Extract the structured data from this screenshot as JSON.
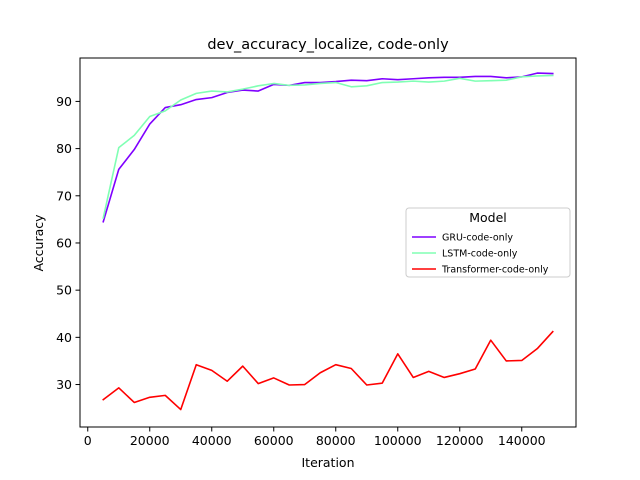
{
  "chart_data": {
    "type": "line",
    "title": "dev_accuracy_localize, code-only",
    "xlabel": "Iteration",
    "ylabel": "Accuracy",
    "xlim": [
      -2500,
      157500
    ],
    "ylim": [
      21.0,
      99.2
    ],
    "xticks": [
      0,
      20000,
      40000,
      60000,
      80000,
      100000,
      120000,
      140000
    ],
    "yticks": [
      30,
      40,
      50,
      60,
      70,
      80,
      90
    ],
    "grid": false,
    "legend": {
      "title": "Model",
      "placement": "center-right"
    },
    "x": [
      5000,
      10000,
      15000,
      20000,
      25000,
      30000,
      35000,
      40000,
      45000,
      50000,
      55000,
      60000,
      65000,
      70000,
      75000,
      80000,
      85000,
      90000,
      95000,
      100000,
      105000,
      110000,
      115000,
      120000,
      125000,
      130000,
      135000,
      140000,
      145000,
      150000
    ],
    "series": [
      {
        "name": "GRU-code-only",
        "color": "#7f00ff",
        "values": [
          64.5,
          75.6,
          79.8,
          85.2,
          88.7,
          89.3,
          90.4,
          90.8,
          91.9,
          92.4,
          92.2,
          93.6,
          93.4,
          94.0,
          94.0,
          94.2,
          94.5,
          94.4,
          94.8,
          94.6,
          94.8,
          95.0,
          95.1,
          95.1,
          95.3,
          95.3,
          95.0,
          95.2,
          96.0,
          95.9
        ]
      },
      {
        "name": "LSTM-code-only",
        "color": "#80ffb4",
        "values": [
          65.3,
          80.2,
          82.8,
          86.8,
          88.0,
          90.3,
          91.7,
          92.2,
          92.0,
          92.6,
          93.3,
          93.8,
          93.4,
          93.5,
          93.8,
          94.0,
          93.1,
          93.3,
          94.0,
          94.1,
          94.3,
          94.1,
          94.3,
          94.9,
          94.3,
          94.4,
          94.5,
          95.2,
          95.4,
          95.5
        ]
      },
      {
        "name": "Transformer-code-only",
        "color": "#ff0000",
        "values": [
          26.8,
          29.3,
          26.2,
          27.3,
          27.7,
          24.7,
          34.2,
          33.0,
          30.7,
          33.9,
          30.2,
          31.4,
          29.9,
          30.0,
          32.5,
          34.2,
          33.4,
          29.9,
          30.3,
          36.5,
          31.5,
          32.8,
          31.5,
          32.3,
          33.3,
          39.4,
          35.0,
          35.1,
          37.6,
          41.2
        ]
      }
    ]
  }
}
